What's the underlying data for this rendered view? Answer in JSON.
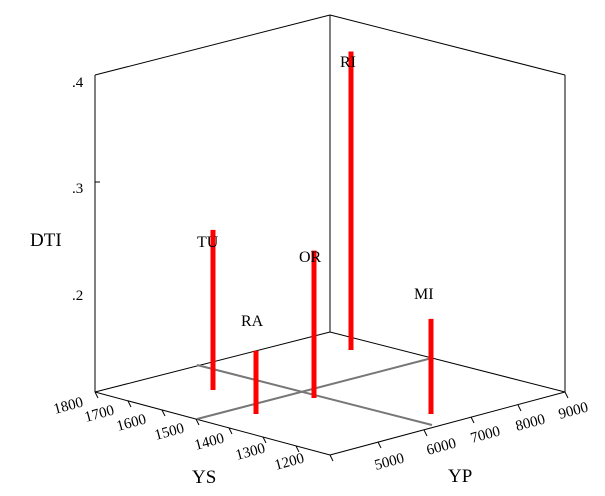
{
  "chart_data": {
    "type": "3d-bar",
    "title": "",
    "zlabel": "DTI",
    "ylabel_ys": "YS",
    "xlabel_yp": "YP",
    "z_ticks": [
      ".4",
      ".3",
      ".2"
    ],
    "ys_ticks": [
      "1800",
      "1700",
      "1600",
      "1500",
      "1400",
      "1300",
      "1200"
    ],
    "yp_ticks": [
      "5000",
      "6000",
      "7000",
      "8000",
      "9000"
    ],
    "bar_color": "#ff0000",
    "points": [
      {
        "label": "RI",
        "value": 0.405
      },
      {
        "label": "TU",
        "value": 0.26
      },
      {
        "label": "OR",
        "value": 0.245
      },
      {
        "label": "MI",
        "value": 0.19
      },
      {
        "label": "RA",
        "value": 0.16
      }
    ]
  }
}
